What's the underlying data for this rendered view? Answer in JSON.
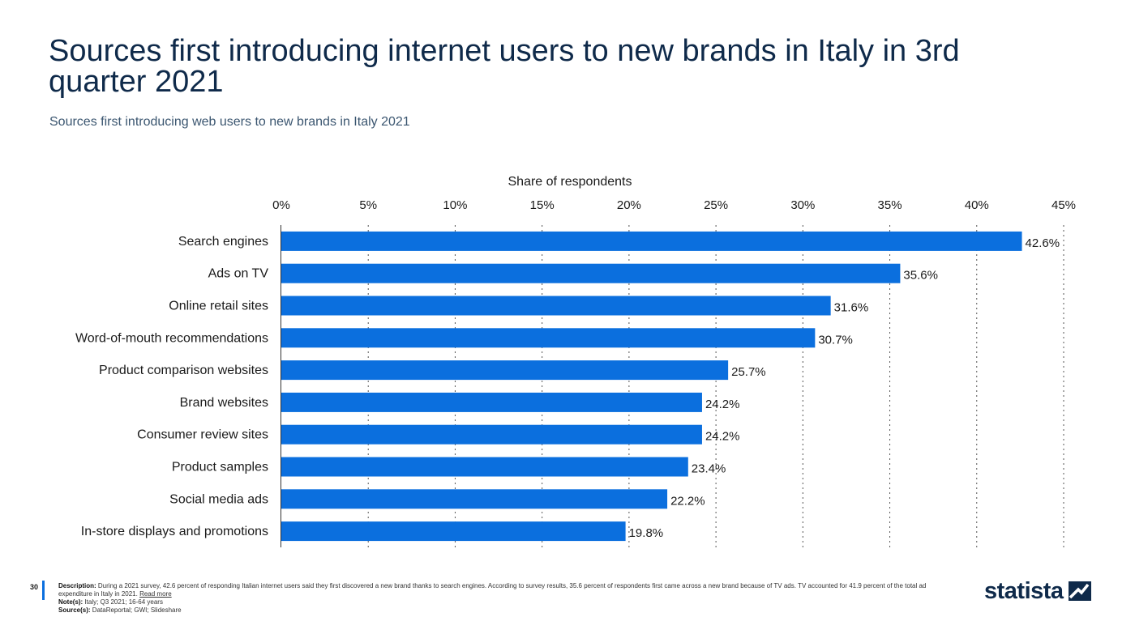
{
  "header": {
    "title": "Sources first introducing internet users to new brands in Italy in 3rd quarter 2021",
    "subtitle": "Sources first introducing web users to new brands in Italy 2021"
  },
  "chart_data": {
    "type": "bar",
    "orientation": "horizontal",
    "xlabel": "Share of respondents",
    "xlim": [
      0,
      45
    ],
    "xticks": [
      "0%",
      "5%",
      "10%",
      "15%",
      "20%",
      "25%",
      "30%",
      "35%",
      "40%",
      "45%"
    ],
    "grid": true,
    "categories": [
      "Search engines",
      "Ads on TV",
      "Online retail sites",
      "Word-of-mouth recommendations",
      "Product comparison websites",
      "Brand websites",
      "Consumer review sites",
      "Product samples",
      "Social media ads",
      "In-store displays and promotions"
    ],
    "values": [
      42.6,
      35.6,
      31.6,
      30.7,
      25.7,
      24.2,
      24.2,
      23.4,
      22.2,
      19.8
    ],
    "value_labels": [
      "42.6%",
      "35.6%",
      "31.6%",
      "30.7%",
      "25.7%",
      "24.2%",
      "24.2%",
      "23.4%",
      "22.2%",
      "19.8%"
    ],
    "bar_color": "#0b6fde"
  },
  "footer": {
    "page_number": "30",
    "description_label": "Description:",
    "description": "During a 2021 survey, 42.6 percent of responding Italian internet users said they first discovered a new brand thanks to search engines. According to survey results, 35.6 percent of respondents first came across a new brand because of TV ads. TV accounted for 41.9 percent of the total ad expenditure in Italy in 2021.",
    "read_more": "Read more",
    "notes_label": "Note(s):",
    "notes": "Italy; Q3 2021; 16-64 years",
    "sources_label": "Source(s):",
    "sources": "DataReportal; GWI; Slideshare"
  },
  "brand": {
    "logo_text": "statista",
    "logo_icon": "statista-logo-icon"
  }
}
